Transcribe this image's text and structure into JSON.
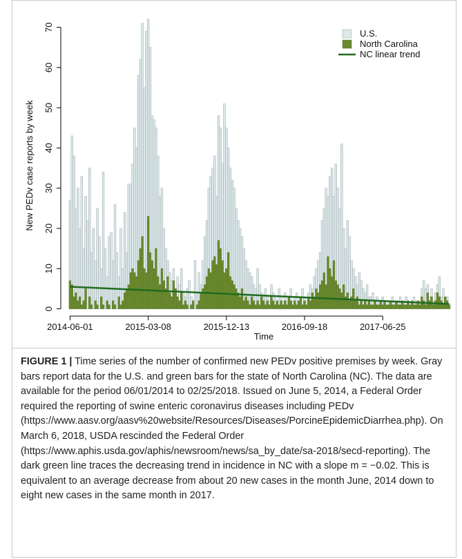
{
  "chart_data": {
    "type": "bar",
    "x_label": "Time",
    "y_label": "New PEDv case reports by week",
    "categories": [
      "2014-06-01",
      null,
      null,
      null,
      null,
      null,
      null,
      null,
      null,
      null,
      null,
      null,
      null,
      null,
      null,
      null,
      null,
      null,
      null,
      null,
      null,
      null,
      null,
      null,
      null,
      null,
      null,
      null,
      null,
      null,
      null,
      null,
      null,
      null,
      null,
      null,
      null,
      null,
      null,
      null,
      "2015-03-08",
      null,
      null,
      null,
      null,
      null,
      null,
      null,
      null,
      null,
      null,
      null,
      null,
      null,
      null,
      null,
      null,
      null,
      null,
      null,
      null,
      null,
      null,
      null,
      null,
      null,
      null,
      null,
      null,
      null,
      null,
      null,
      null,
      null,
      null,
      null,
      null,
      null,
      null,
      null,
      "2015-12-13",
      null,
      null,
      null,
      null,
      null,
      null,
      null,
      null,
      null,
      null,
      null,
      null,
      null,
      null,
      null,
      null,
      null,
      null,
      null,
      null,
      null,
      null,
      null,
      null,
      null,
      null,
      null,
      null,
      null,
      null,
      null,
      null,
      null,
      null,
      null,
      null,
      null,
      null,
      null,
      "2016-09-18",
      null,
      null,
      null,
      null,
      null,
      null,
      null,
      null,
      null,
      null,
      null,
      null,
      null,
      null,
      null,
      null,
      null,
      null,
      null,
      null,
      null,
      null,
      null,
      null,
      null,
      null,
      null,
      null,
      null,
      null,
      null,
      null,
      null,
      null,
      null,
      null,
      null,
      null,
      null,
      "2017-06-25",
      null,
      null,
      null,
      null,
      null,
      null,
      null,
      null,
      null,
      null,
      null,
      null,
      null,
      null,
      null,
      null,
      null,
      null,
      null,
      null,
      null,
      null,
      null,
      null,
      null,
      null,
      null,
      null,
      null,
      null,
      null,
      null,
      null,
      null
    ],
    "series": [
      {
        "name": "U.S.",
        "color": "#dce8e9",
        "stroke": "#9aa6a8",
        "values": [
          27,
          43,
          38,
          25,
          30,
          20,
          33,
          15,
          28,
          22,
          35,
          14,
          20,
          12,
          25,
          18,
          10,
          34,
          15,
          8,
          18,
          19,
          12,
          26,
          14,
          8,
          20,
          10,
          24,
          14,
          31,
          31,
          36,
          45,
          40,
          58,
          62,
          71,
          55,
          69,
          72,
          65,
          48,
          47,
          45,
          38,
          28,
          30,
          20,
          15,
          12,
          9,
          7,
          10,
          5,
          8,
          6,
          10,
          4,
          3,
          5,
          7,
          3,
          2,
          12,
          4,
          9,
          6,
          12,
          18,
          22,
          30,
          33,
          35,
          38,
          28,
          48,
          45,
          36,
          51,
          45,
          40,
          35,
          32,
          30,
          25,
          22,
          20,
          18,
          15,
          12,
          10,
          9,
          8,
          6,
          5,
          10,
          6,
          4,
          3,
          5,
          3,
          2,
          6,
          4,
          3,
          2,
          5,
          3,
          2,
          4,
          2,
          3,
          5,
          2,
          3,
          4,
          2,
          3,
          5,
          3,
          2,
          4,
          6,
          5,
          8,
          10,
          12,
          14,
          22,
          25,
          30,
          28,
          33,
          35,
          28,
          36,
          30,
          25,
          41,
          20,
          15,
          22,
          18,
          12,
          10,
          8,
          6,
          9,
          7,
          5,
          4,
          6,
          3,
          3,
          4,
          2,
          3,
          2,
          2,
          3,
          2,
          1,
          2,
          2,
          3,
          2,
          1,
          2,
          3,
          1,
          2,
          3,
          2,
          1,
          2,
          3,
          2,
          1,
          2,
          5,
          7,
          5,
          6,
          3,
          5,
          2,
          4,
          6,
          8,
          3,
          5,
          2,
          3,
          1
        ]
      },
      {
        "name": "North Carolina",
        "color": "#6b8a2f",
        "stroke": "#5a7626",
        "values": [
          7,
          6,
          3,
          4,
          2,
          3,
          1,
          2,
          5,
          0,
          3,
          1,
          0,
          2,
          1,
          0,
          3,
          1,
          0,
          2,
          1,
          0,
          2,
          1,
          0,
          3,
          1,
          2,
          4,
          5,
          6,
          9,
          10,
          9,
          8,
          12,
          15,
          18,
          10,
          9,
          23,
          14,
          12,
          10,
          15,
          8,
          6,
          10,
          7,
          5,
          8,
          4,
          3,
          7,
          5,
          3,
          2,
          4,
          1,
          2,
          1,
          0,
          1,
          2,
          0,
          1,
          2,
          4,
          5,
          6,
          8,
          10,
          9,
          12,
          13,
          11,
          17,
          15,
          12,
          9,
          10,
          14,
          8,
          7,
          6,
          5,
          4,
          3,
          5,
          2,
          3,
          2,
          1,
          3,
          2,
          1,
          2,
          1,
          3,
          2,
          1,
          2,
          1,
          3,
          2,
          1,
          2,
          1,
          2,
          1,
          2,
          1,
          3,
          2,
          1,
          2,
          1,
          2,
          3,
          1,
          2,
          1,
          3,
          2,
          4,
          3,
          5,
          4,
          6,
          7,
          9,
          6,
          13,
          10,
          8,
          12,
          7,
          6,
          5,
          4,
          6,
          3,
          4,
          2,
          3,
          5,
          2,
          3,
          1,
          2,
          1,
          2,
          1,
          2,
          1,
          1,
          2,
          1,
          1,
          2,
          1,
          2,
          1,
          1,
          2,
          1,
          1,
          2,
          1,
          1,
          2,
          1,
          1,
          2,
          1,
          2,
          1,
          1,
          2,
          1,
          3,
          2,
          1,
          4,
          2,
          3,
          1,
          2,
          4,
          3,
          2,
          1,
          3,
          2,
          1
        ]
      }
    ],
    "trend_line": {
      "name": "NC linear trend",
      "color": "#1f6b1f",
      "values": [
        5.5,
        1.2
      ]
    },
    "ylim": [
      -1.8,
      72.5
    ],
    "yticks": [
      0,
      10,
      20,
      30,
      40,
      50,
      60,
      70
    ],
    "legend_position": "top-right",
    "caption": {
      "label": "FIGURE 1 |",
      "text": "Time series of the number of confirmed new PEDv positive premises by week. Gray bars report data for the U.S. and green bars for the state of North Carolina (NC). The data are available for the period 06/01/2014 to 02/25/2018. Issued on June 5, 2014, a Federal Order required the reporting of swine enteric coronavirus diseases including PEDv (https://www.aasv.org/aasv%20website/Resources/Diseases/PorcineEpidemicDiarrhea.php). On March 6, 2018, USDA rescinded the Federal Order (https://www.aphis.usda.gov/aphis/newsroom/news/sa_by_date/sa-2018/secd-reporting). The dark green line traces the decreasing trend in incidence in NC with a slope m = −0.02. This is equivalent to an average decrease from about 20 new cases in the month June, 2014 down to eight new cases in the same month in 2017."
    }
  }
}
